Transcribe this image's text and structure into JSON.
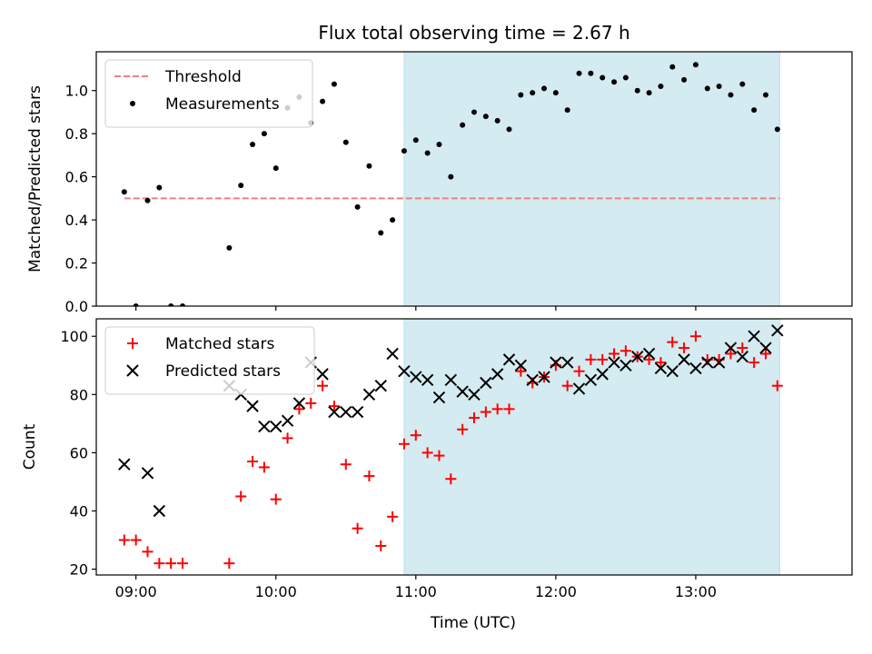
{
  "figure_title": "Flux total observing time = 2.67 h",
  "chart_data": [
    {
      "type": "scatter",
      "panel": "top",
      "title": "Flux total observing time = 2.67 h",
      "ylabel": "Matched/Predicted stars",
      "xlabel": "",
      "xlim": [
        "08:43",
        "14:07"
      ],
      "ylim": [
        0,
        1.18
      ],
      "yticks": [
        0.0,
        0.2,
        0.4,
        0.6,
        0.8,
        1.0
      ],
      "ytick_labels": [
        "0.0",
        "0.2",
        "0.4",
        "0.6",
        "0.8",
        "1.0"
      ],
      "legend_position": "top-left",
      "shaded_span": {
        "start": "10:55",
        "end": "13:36",
        "color": "#d4ebf1"
      },
      "threshold": {
        "name": "Threshold",
        "value": 0.5,
        "x_start": "08:55",
        "x_end": "13:36",
        "color": "#f08080",
        "style": "dashed"
      },
      "series": [
        {
          "name": "Measurements",
          "color": "#000000",
          "marker": "dot",
          "x": [
            "08:55",
            "09:00",
            "09:05",
            "09:10",
            "09:15",
            "09:20",
            "09:40",
            "09:45",
            "09:50",
            "09:55",
            "10:00",
            "10:05",
            "10:10",
            "10:15",
            "10:20",
            "10:25",
            "10:30",
            "10:35",
            "10:40",
            "10:45",
            "10:50",
            "10:55",
            "11:00",
            "11:05",
            "11:10",
            "11:15",
            "11:20",
            "11:25",
            "11:30",
            "11:35",
            "11:40",
            "11:45",
            "11:50",
            "11:55",
            "12:00",
            "12:05",
            "12:10",
            "12:15",
            "12:20",
            "12:25",
            "12:30",
            "12:35",
            "12:40",
            "12:45",
            "12:50",
            "12:55",
            "13:00",
            "13:05",
            "13:10",
            "13:15",
            "13:20",
            "13:25",
            "13:30",
            "13:35"
          ],
          "y": [
            0.53,
            0.0,
            0.49,
            0.55,
            0.0,
            0.0,
            0.27,
            0.56,
            0.75,
            0.8,
            0.64,
            0.92,
            0.97,
            0.85,
            0.95,
            1.03,
            0.76,
            0.46,
            0.65,
            0.34,
            0.4,
            0.72,
            0.77,
            0.71,
            0.75,
            0.6,
            0.84,
            0.9,
            0.88,
            0.86,
            0.82,
            0.98,
            0.99,
            1.01,
            0.99,
            0.91,
            1.08,
            1.08,
            1.06,
            1.04,
            1.06,
            1.0,
            0.99,
            1.02,
            1.11,
            1.05,
            1.12,
            1.01,
            1.02,
            0.98,
            1.03,
            0.91,
            0.98,
            0.82
          ]
        }
      ]
    },
    {
      "type": "scatter",
      "panel": "bottom",
      "ylabel": "Count",
      "xlabel": "Time (UTC)",
      "xlim": [
        "08:43",
        "14:07"
      ],
      "ylim": [
        18,
        106
      ],
      "yticks": [
        20,
        40,
        60,
        80,
        100
      ],
      "ytick_labels": [
        "20",
        "40",
        "60",
        "80",
        "100"
      ],
      "xticks": [
        "09:00",
        "10:00",
        "11:00",
        "12:00",
        "13:00"
      ],
      "xtick_labels": [
        "09:00",
        "10:00",
        "11:00",
        "12:00",
        "13:00"
      ],
      "legend_position": "top-left",
      "shaded_span": {
        "start": "10:55",
        "end": "13:36",
        "color": "#d4ebf1"
      },
      "series": [
        {
          "name": "Matched stars",
          "color": "#ff0000",
          "marker": "plus",
          "x": [
            "08:55",
            "09:00",
            "09:05",
            "09:10",
            "09:15",
            "09:20",
            "09:40",
            "09:45",
            "09:50",
            "09:55",
            "10:00",
            "10:05",
            "10:10",
            "10:15",
            "10:20",
            "10:25",
            "10:30",
            "10:35",
            "10:40",
            "10:45",
            "10:50",
            "10:55",
            "11:00",
            "11:05",
            "11:10",
            "11:15",
            "11:20",
            "11:25",
            "11:30",
            "11:35",
            "11:40",
            "11:45",
            "11:50",
            "11:55",
            "12:00",
            "12:05",
            "12:10",
            "12:15",
            "12:20",
            "12:25",
            "12:30",
            "12:35",
            "12:40",
            "12:45",
            "12:50",
            "12:55",
            "13:00",
            "13:05",
            "13:10",
            "13:15",
            "13:20",
            "13:25",
            "13:30",
            "13:35"
          ],
          "y": [
            30,
            30,
            26,
            22,
            22,
            22,
            22,
            45,
            57,
            55,
            44,
            65,
            75,
            77,
            83,
            76,
            56,
            34,
            52,
            28,
            38,
            63,
            66,
            60,
            59,
            51,
            68,
            72,
            74,
            75,
            75,
            88,
            84,
            86,
            90,
            83,
            88,
            92,
            92,
            94,
            95,
            93,
            92,
            91,
            98,
            96,
            100,
            92,
            92,
            94,
            96,
            91,
            94,
            83
          ]
        },
        {
          "name": "Predicted stars",
          "color": "#000000",
          "marker": "x",
          "x": [
            "08:55",
            "09:05",
            "09:10",
            "09:40",
            "09:45",
            "09:50",
            "09:55",
            "10:00",
            "10:05",
            "10:10",
            "10:15",
            "10:20",
            "10:25",
            "10:30",
            "10:35",
            "10:40",
            "10:45",
            "10:50",
            "10:55",
            "11:00",
            "11:05",
            "11:10",
            "11:15",
            "11:20",
            "11:25",
            "11:30",
            "11:35",
            "11:40",
            "11:45",
            "11:50",
            "11:55",
            "12:00",
            "12:05",
            "12:10",
            "12:15",
            "12:20",
            "12:25",
            "12:30",
            "12:35",
            "12:40",
            "12:45",
            "12:50",
            "12:55",
            "13:00",
            "13:05",
            "13:10",
            "13:15",
            "13:20",
            "13:25",
            "13:30",
            "13:35"
          ],
          "y": [
            56,
            53,
            40,
            83,
            80,
            76,
            69,
            69,
            71,
            77,
            91,
            87,
            74,
            74,
            74,
            80,
            83,
            94,
            88,
            86,
            85,
            79,
            85,
            81,
            80,
            84,
            87,
            92,
            90,
            85,
            86,
            91,
            91,
            82,
            85,
            87,
            91,
            90,
            93,
            94,
            89,
            88,
            92,
            89,
            91,
            91,
            96,
            93,
            100,
            96,
            102
          ]
        }
      ]
    }
  ]
}
